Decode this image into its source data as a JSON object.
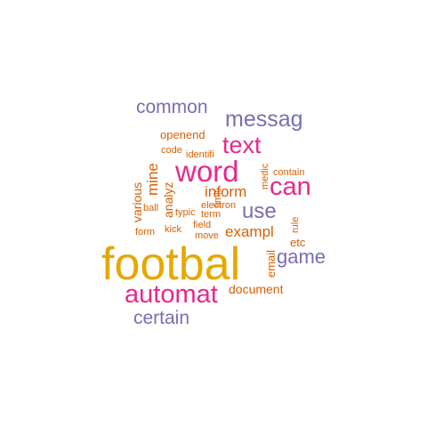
{
  "colors": {
    "gold": "#e5a800",
    "magenta": "#e7298a",
    "slate": "#7570b3",
    "orange": "#d95f02"
  },
  "words": [
    {
      "key": "footbal",
      "text": "footbal",
      "color": "gold"
    },
    {
      "key": "automat",
      "text": "automat",
      "color": "magenta"
    },
    {
      "key": "word",
      "text": "word",
      "color": "magenta"
    },
    {
      "key": "text",
      "text": "text",
      "color": "magenta"
    },
    {
      "key": "can",
      "text": "can",
      "color": "magenta"
    },
    {
      "key": "messag",
      "text": "messag",
      "color": "slate"
    },
    {
      "key": "common",
      "text": "common",
      "color": "slate"
    },
    {
      "key": "use",
      "text": "use",
      "color": "slate"
    },
    {
      "key": "game",
      "text": "game",
      "color": "slate"
    },
    {
      "key": "certain",
      "text": "certain",
      "color": "slate"
    },
    {
      "key": "exampl",
      "text": "exampl",
      "color": "orange"
    },
    {
      "key": "inform",
      "text": "inform",
      "color": "orange"
    },
    {
      "key": "document",
      "text": "document",
      "color": "orange"
    },
    {
      "key": "openend",
      "text": "openend",
      "color": "orange"
    },
    {
      "key": "mine",
      "text": "mine",
      "color": "orange"
    },
    {
      "key": "analyz",
      "text": "analyz",
      "color": "orange"
    },
    {
      "key": "various",
      "text": "various",
      "color": "orange"
    },
    {
      "key": "email",
      "text": "email",
      "color": "orange"
    },
    {
      "key": "etc",
      "text": "etc",
      "color": "orange"
    },
    {
      "key": "code",
      "text": "code",
      "color": "orange"
    },
    {
      "key": "identifi",
      "text": "identifi",
      "color": "orange"
    },
    {
      "key": "contain",
      "text": "contain",
      "color": "orange"
    },
    {
      "key": "medic",
      "text": "medic",
      "color": "orange"
    },
    {
      "key": "limit",
      "text": "limit",
      "color": "orange"
    },
    {
      "key": "electron",
      "text": "electron",
      "color": "orange"
    },
    {
      "key": "ball",
      "text": "ball",
      "color": "orange"
    },
    {
      "key": "typic",
      "text": "typic",
      "color": "orange"
    },
    {
      "key": "term",
      "text": "term",
      "color": "orange"
    },
    {
      "key": "field",
      "text": "field",
      "color": "orange"
    },
    {
      "key": "kick",
      "text": "kick",
      "color": "orange"
    },
    {
      "key": "form",
      "text": "form",
      "color": "orange"
    },
    {
      "key": "move",
      "text": "move",
      "color": "orange"
    },
    {
      "key": "rule",
      "text": "rule",
      "color": "orange"
    }
  ]
}
